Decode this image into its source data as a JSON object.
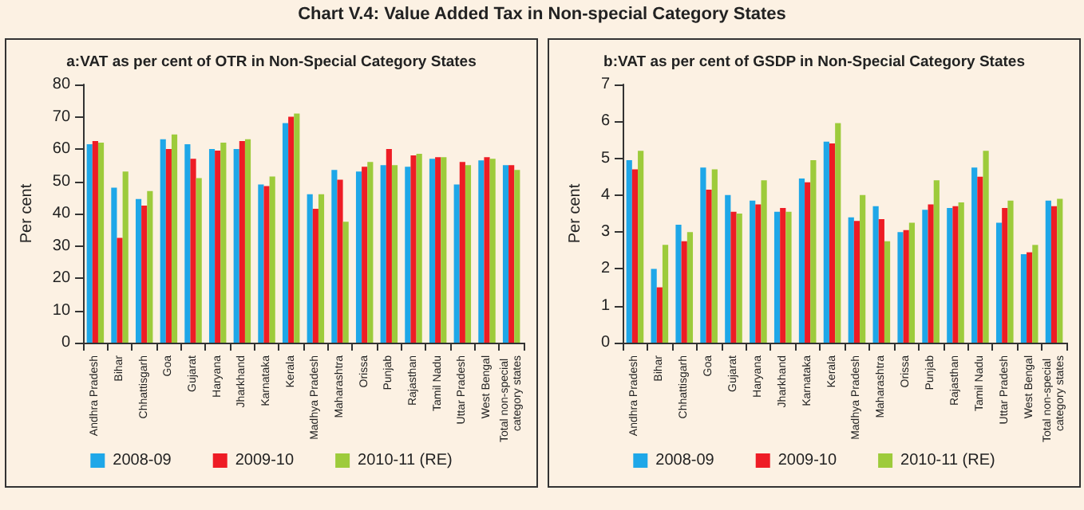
{
  "chart_data": [
    {
      "type": "bar",
      "title": "a:VAT as per cent of OTR in Non-Special Category States",
      "ylabel": "Per cent",
      "annotations": [
        "Chart V.4: Value Added Tax in Non-special Category States"
      ],
      "categories": [
        "Andhra Pradesh",
        "Bihar",
        "Chhattisgarh",
        "Goa",
        "Gujarat",
        "Haryana",
        "Jharkhand",
        "Karnataka",
        "Kerala",
        "Madhya Pradesh",
        "Maharashtra",
        "Orissa",
        "Punjab",
        "Rajasthan",
        "Tamil Nadu",
        "Uttar Pradesh",
        "West Bengal",
        "Total non-special category states"
      ],
      "series": [
        {
          "name": "2008-09",
          "color": "#1ea7e8",
          "values": [
            61.5,
            48,
            44.5,
            63,
            61.5,
            60,
            60,
            49,
            68,
            46,
            53.5,
            53,
            55,
            54.5,
            57,
            49,
            56.5,
            55
          ]
        },
        {
          "name": "2009-10",
          "color": "#ee1c25",
          "values": [
            62.5,
            32.5,
            42.5,
            60,
            57,
            59.5,
            62.5,
            48.5,
            70,
            41.5,
            50.5,
            54.5,
            60,
            58,
            57.5,
            56,
            57.5,
            55
          ]
        },
        {
          "name": "2010-11 (RE)",
          "color": "#9dcb3b",
          "values": [
            62,
            53,
            47,
            64.5,
            51,
            62,
            63,
            51.5,
            71,
            46,
            37.5,
            56,
            55,
            58.5,
            57.5,
            55,
            57,
            53.5
          ]
        }
      ],
      "ylim": [
        0,
        80
      ],
      "yticks": [
        0,
        10,
        20,
        30,
        40,
        50,
        60,
        70,
        80
      ],
      "grid": false,
      "legend": "bottom"
    },
    {
      "type": "bar",
      "title": "b:VAT as per cent of GSDP in Non-Special Category States",
      "ylabel": "Per cent",
      "categories": [
        "Andhra Pradesh",
        "Bihar",
        "Chhattisgarh",
        "Goa",
        "Gujarat",
        "Haryana",
        "Jharkhand",
        "Karnataka",
        "Kerala",
        "Madhya Pradesh",
        "Maharashtra",
        "Orissa",
        "Punjab",
        "Rajasthan",
        "Tamil Nadu",
        "Uttar Pradesh",
        "West Bengal",
        "Total non-special category states"
      ],
      "series": [
        {
          "name": "2008-09",
          "color": "#1ea7e8",
          "values": [
            4.95,
            2.0,
            3.2,
            4.75,
            4.0,
            3.85,
            3.55,
            4.45,
            5.45,
            3.4,
            3.7,
            3.0,
            3.6,
            3.65,
            4.75,
            3.25,
            2.4,
            3.85
          ]
        },
        {
          "name": "2009-10",
          "color": "#ee1c25",
          "values": [
            4.7,
            1.5,
            2.75,
            4.15,
            3.55,
            3.75,
            3.65,
            4.35,
            5.4,
            3.3,
            3.35,
            3.05,
            3.75,
            3.7,
            4.5,
            3.65,
            2.45,
            3.7
          ]
        },
        {
          "name": "2010-11 (RE)",
          "color": "#9dcb3b",
          "values": [
            5.2,
            2.65,
            3.0,
            4.7,
            3.5,
            4.4,
            3.55,
            4.95,
            5.95,
            4.0,
            2.75,
            3.25,
            4.4,
            3.8,
            5.2,
            3.85,
            2.65,
            3.9
          ]
        }
      ],
      "ylim": [
        0,
        7
      ],
      "yticks": [
        0,
        1,
        2,
        3,
        4,
        5,
        6,
        7
      ],
      "grid": false,
      "legend": "bottom"
    }
  ]
}
